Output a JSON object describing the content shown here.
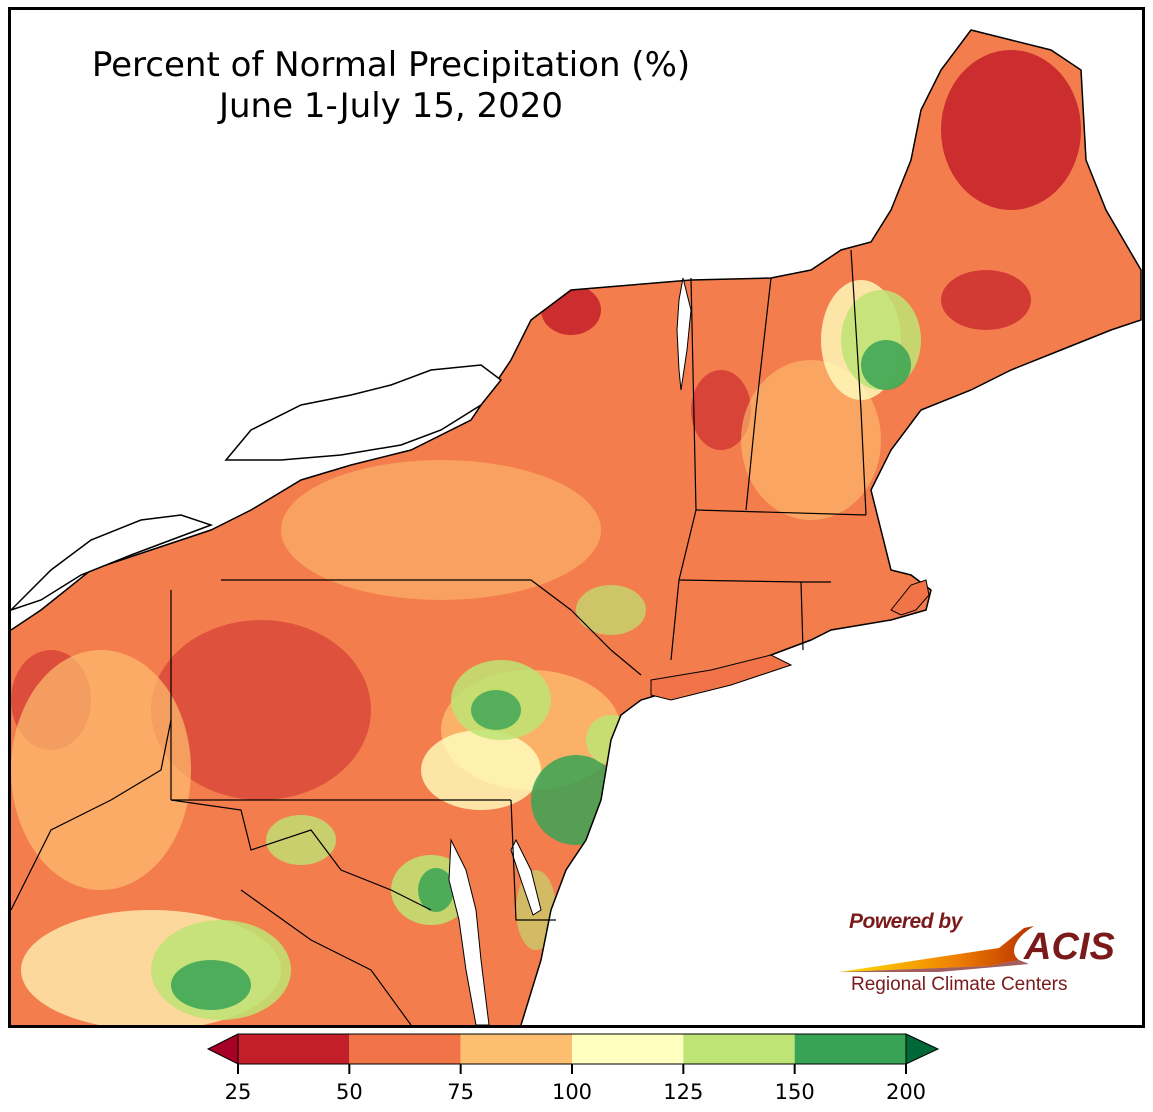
{
  "title": {
    "line1": "Percent of Normal Precipitation (%)",
    "line2": "June 1-July 15, 2020"
  },
  "badge": {
    "powered_by": "Powered by",
    "name": "ACIS",
    "subtitle": "Regional Climate Centers"
  },
  "legend": {
    "ticks": [
      "25",
      "50",
      "75",
      "100",
      "125",
      "150",
      "200"
    ],
    "bins": [
      {
        "range": "25-50",
        "color": "#c41e2a"
      },
      {
        "range": "50-75",
        "color": "#f07447"
      },
      {
        "range": "75-100",
        "color": "#fdbf6f"
      },
      {
        "range": "100-125",
        "color": "#ffffbf"
      },
      {
        "range": "125-150",
        "color": "#bde474"
      },
      {
        "range": "150-200",
        "color": "#38a355"
      }
    ],
    "under_color": "#a50026",
    "over_color": "#006837"
  },
  "colors": {
    "land_base": "#f47d4e",
    "water": "#ffffff",
    "border": "#000000",
    "county_lines": "#9a9a9a"
  }
}
